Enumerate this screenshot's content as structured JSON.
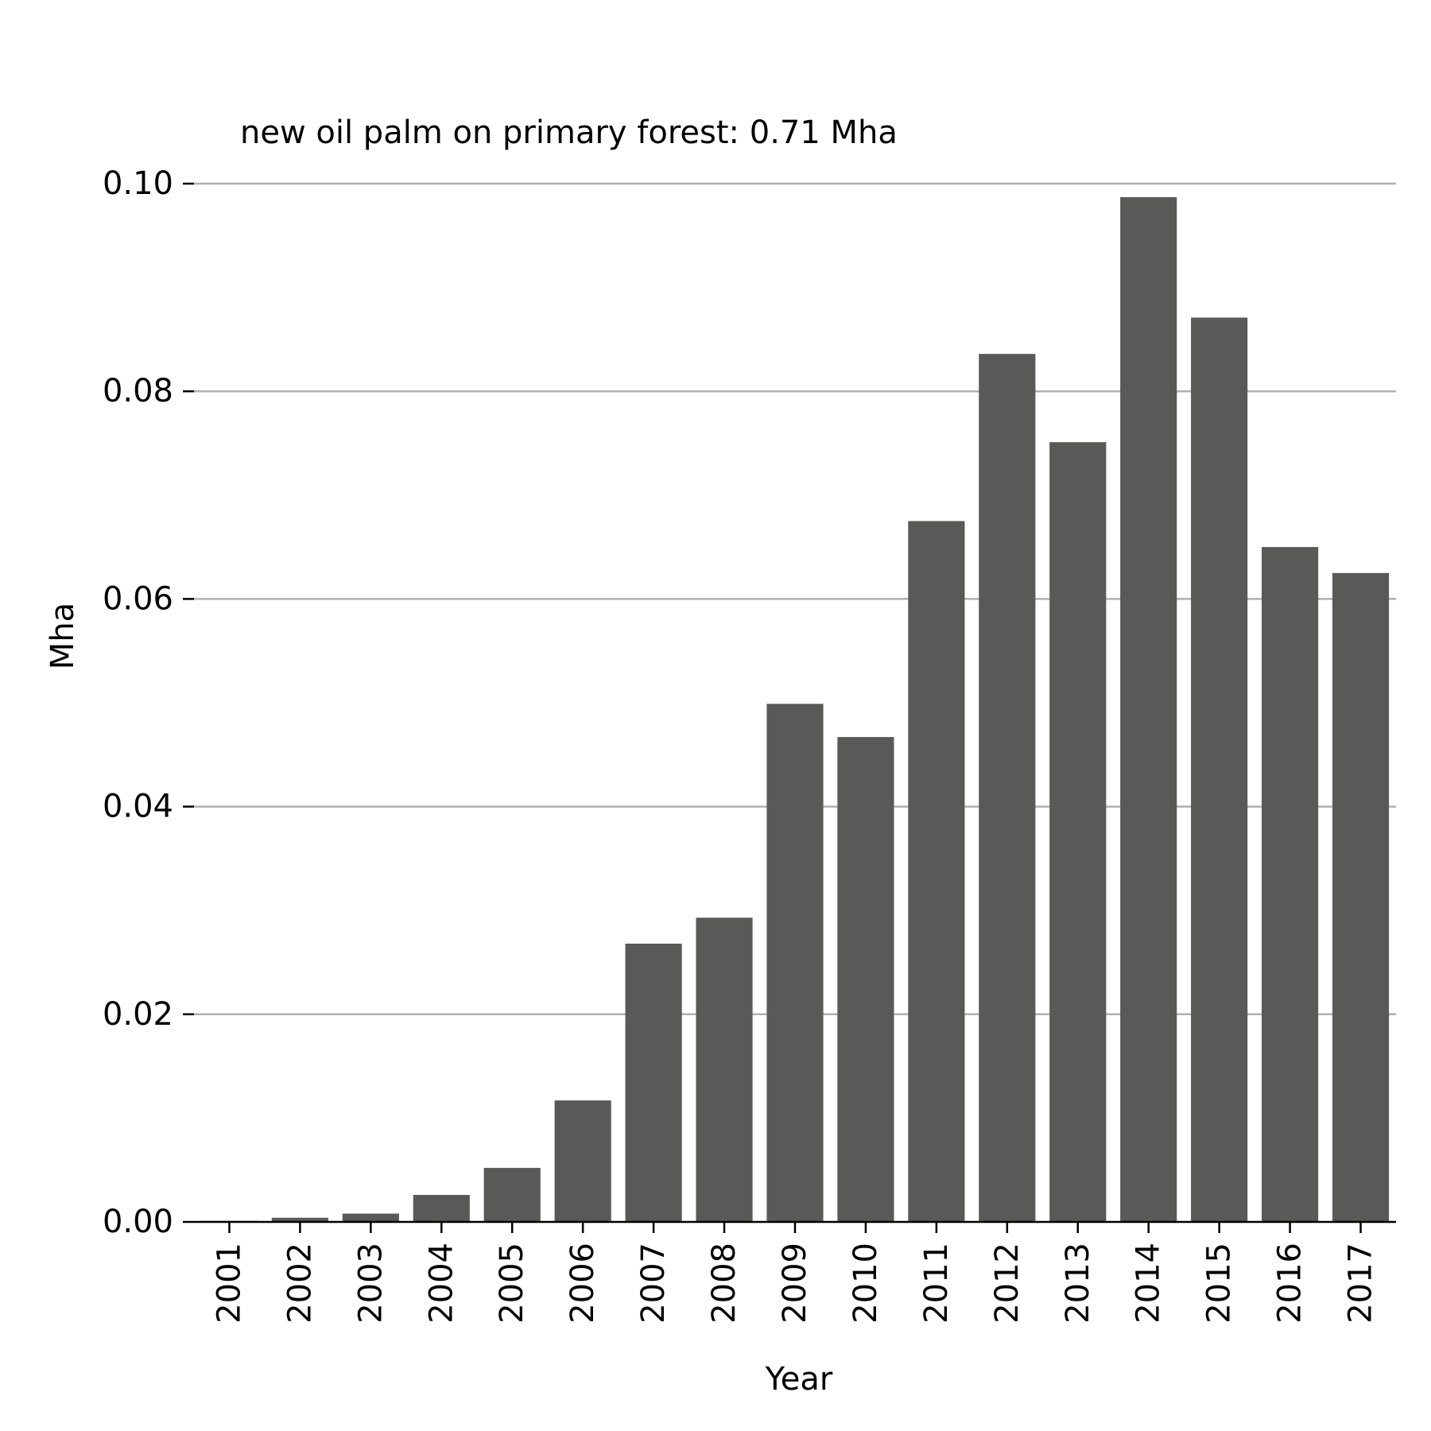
{
  "chart_data": {
    "type": "bar",
    "title": "new oil palm on primary forest: 0.71 Mha",
    "xlabel": "Year",
    "ylabel": "Mha",
    "categories": [
      "2001",
      "2002",
      "2003",
      "2004",
      "2005",
      "2006",
      "2007",
      "2008",
      "2009",
      "2010",
      "2011",
      "2012",
      "2013",
      "2014",
      "2015",
      "2016",
      "2017"
    ],
    "values": [
      0.0001,
      0.0004,
      0.0008,
      0.0026,
      0.0052,
      0.0117,
      0.0268,
      0.0293,
      0.0499,
      0.0467,
      0.0675,
      0.0836,
      0.0751,
      0.0987,
      0.0871,
      0.065,
      0.0625
    ],
    "ylim": [
      0,
      0.1
    ],
    "yticks": [
      "0.00",
      "0.02",
      "0.04",
      "0.06",
      "0.08",
      "0.10"
    ],
    "ytick_values": [
      0,
      0.02,
      0.04,
      0.06,
      0.08,
      0.1
    ],
    "grid": "y",
    "colors": {
      "bar": "#595957",
      "grid": "#b0b0b0",
      "axis": "#000000"
    }
  }
}
